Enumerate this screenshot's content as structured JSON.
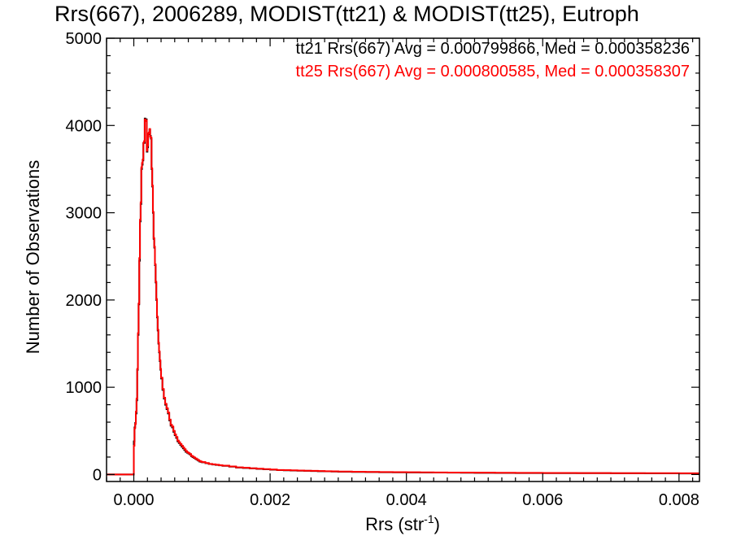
{
  "chart_data": {
    "type": "line",
    "title": "Rrs(667), 2006289, MODIST(tt21) & MODIST(tt25), Eutroph",
    "xlabel": {
      "base": "Rrs (str",
      "sup": "-1",
      "end": ")"
    },
    "ylabel": "Number of Observations",
    "xlim": [
      -0.0004,
      0.0083
    ],
    "ylim": [
      -80,
      5000
    ],
    "x_ticks": [
      0.0,
      0.002,
      0.004,
      0.006,
      0.008
    ],
    "x_tick_labels": [
      "0.000",
      "0.002",
      "0.004",
      "0.006",
      "0.008"
    ],
    "y_ticks": [
      0,
      1000,
      2000,
      3000,
      4000,
      5000
    ],
    "y_tick_labels": [
      "0",
      "1000",
      "2000",
      "3000",
      "4000",
      "5000"
    ],
    "legend_position": "top-right",
    "series": [
      {
        "name": "tt21",
        "legend": "tt21 Rrs(667) Avg = 0.000799866, Med = 0.000358236",
        "color": "#000000",
        "x": [
          -0.0004,
          -5e-05,
          -3e-05,
          -2e-05,
          0.0,
          1e-05,
          2e-05,
          3e-05,
          4e-05,
          5e-05,
          6e-05,
          7e-05,
          8e-05,
          9e-05,
          0.0001,
          0.00011,
          0.00012,
          0.00013,
          0.00014,
          0.00015,
          0.00016,
          0.00017,
          0.00018,
          0.00019,
          0.0002,
          0.00021,
          0.00022,
          0.00023,
          0.00024,
          0.00025,
          0.00026,
          0.00027,
          0.00028,
          0.00029,
          0.0003,
          0.00031,
          0.00032,
          0.00033,
          0.00034,
          0.00035,
          0.00036,
          0.00037,
          0.00038,
          0.00039,
          0.0004,
          0.00042,
          0.00044,
          0.00046,
          0.00048,
          0.0005,
          0.00052,
          0.00054,
          0.00056,
          0.00058,
          0.0006,
          0.00062,
          0.00064,
          0.00066,
          0.00068,
          0.0007,
          0.00072,
          0.00074,
          0.00076,
          0.00078,
          0.0008,
          0.00082,
          0.00084,
          0.00086,
          0.00088,
          0.0009,
          0.00092,
          0.00094,
          0.00096,
          0.00098,
          0.001,
          0.00105,
          0.0011,
          0.00115,
          0.0012,
          0.00125,
          0.0013,
          0.0014,
          0.0015,
          0.0016,
          0.0017,
          0.0018,
          0.0019,
          0.002,
          0.0021,
          0.0022,
          0.0023,
          0.0024,
          0.0025,
          0.0026,
          0.0027,
          0.0028,
          0.0029,
          0.003,
          0.0032,
          0.0034,
          0.0036,
          0.0038,
          0.004,
          0.0042,
          0.0044,
          0.0046,
          0.0048,
          0.005,
          0.0053,
          0.0056,
          0.006,
          0.0065,
          0.007,
          0.0075,
          0.008,
          0.0083
        ],
        "y": [
          0,
          0,
          0,
          0,
          380,
          540,
          590,
          700,
          850,
          1200,
          1600,
          1950,
          2450,
          2900,
          3100,
          3500,
          3550,
          3600,
          3800,
          3800,
          4080,
          4060,
          4070,
          3700,
          3750,
          3900,
          3910,
          3950,
          3880,
          3850,
          3500,
          3300,
          3000,
          2700,
          2600,
          2400,
          2200,
          2000,
          1800,
          1650,
          1500,
          1400,
          1300,
          1200,
          1100,
          970,
          870,
          800,
          750,
          700,
          620,
          560,
          540,
          490,
          450,
          420,
          380,
          360,
          340,
          320,
          300,
          280,
          260,
          250,
          240,
          230,
          210,
          200,
          190,
          180,
          170,
          160,
          150,
          145,
          140,
          130,
          120,
          115,
          110,
          105,
          100,
          90,
          80,
          75,
          70,
          65,
          60,
          55,
          50,
          48,
          46,
          44,
          42,
          40,
          38,
          36,
          34,
          32,
          30,
          28,
          26,
          25,
          24,
          23,
          22,
          21,
          20,
          19,
          18,
          17,
          16,
          15,
          14,
          13,
          12,
          12
        ]
      },
      {
        "name": "tt25",
        "legend": "tt25 Rrs(667) Avg = 0.000800585, Med = 0.000358307",
        "color": "#ff0000",
        "x": [
          -0.0004,
          -5e-05,
          -3e-05,
          -2e-05,
          0.0,
          1e-05,
          2e-05,
          3e-05,
          4e-05,
          5e-05,
          6e-05,
          7e-05,
          8e-05,
          9e-05,
          0.0001,
          0.00011,
          0.00012,
          0.00013,
          0.00014,
          0.00015,
          0.00016,
          0.00017,
          0.00018,
          0.00019,
          0.0002,
          0.00021,
          0.00022,
          0.00023,
          0.00024,
          0.00025,
          0.00026,
          0.00027,
          0.00028,
          0.00029,
          0.0003,
          0.00031,
          0.00032,
          0.00033,
          0.00034,
          0.00035,
          0.00036,
          0.00037,
          0.00038,
          0.00039,
          0.0004,
          0.00042,
          0.00044,
          0.00046,
          0.00048,
          0.0005,
          0.00052,
          0.00054,
          0.00056,
          0.00058,
          0.0006,
          0.00062,
          0.00064,
          0.00066,
          0.00068,
          0.0007,
          0.00072,
          0.00074,
          0.00076,
          0.00078,
          0.0008,
          0.00082,
          0.00084,
          0.00086,
          0.00088,
          0.0009,
          0.00092,
          0.00094,
          0.00096,
          0.00098,
          0.001,
          0.00105,
          0.0011,
          0.00115,
          0.0012,
          0.00125,
          0.0013,
          0.0014,
          0.0015,
          0.0016,
          0.0017,
          0.0018,
          0.0019,
          0.002,
          0.0021,
          0.0022,
          0.0023,
          0.0024,
          0.0025,
          0.0026,
          0.0027,
          0.0028,
          0.0029,
          0.003,
          0.0032,
          0.0034,
          0.0036,
          0.0038,
          0.004,
          0.0042,
          0.0044,
          0.0046,
          0.0048,
          0.005,
          0.0053,
          0.0056,
          0.006,
          0.0065,
          0.007,
          0.0075,
          0.008,
          0.0083
        ],
        "y": [
          0,
          0,
          0,
          0,
          330,
          530,
          580,
          720,
          870,
          1210,
          1620,
          1960,
          2480,
          2920,
          3120,
          3520,
          3570,
          3610,
          3800,
          3820,
          4070,
          4050,
          4060,
          3710,
          3770,
          3910,
          3920,
          3960,
          3870,
          3860,
          3510,
          3310,
          3010,
          2710,
          2610,
          2410,
          2210,
          2010,
          1810,
          1660,
          1510,
          1410,
          1310,
          1210,
          1110,
          980,
          880,
          810,
          760,
          710,
          630,
          570,
          550,
          500,
          460,
          430,
          390,
          370,
          350,
          330,
          310,
          290,
          270,
          255,
          245,
          235,
          215,
          205,
          195,
          185,
          175,
          165,
          155,
          148,
          142,
          132,
          122,
          117,
          112,
          107,
          102,
          92,
          82,
          77,
          72,
          67,
          62,
          57,
          52,
          50,
          48,
          46,
          44,
          42,
          40,
          38,
          36,
          34,
          32,
          30,
          28,
          27,
          26,
          25,
          24,
          23,
          22,
          21,
          20,
          19,
          18,
          17,
          16,
          15,
          14,
          14
        ]
      }
    ]
  }
}
